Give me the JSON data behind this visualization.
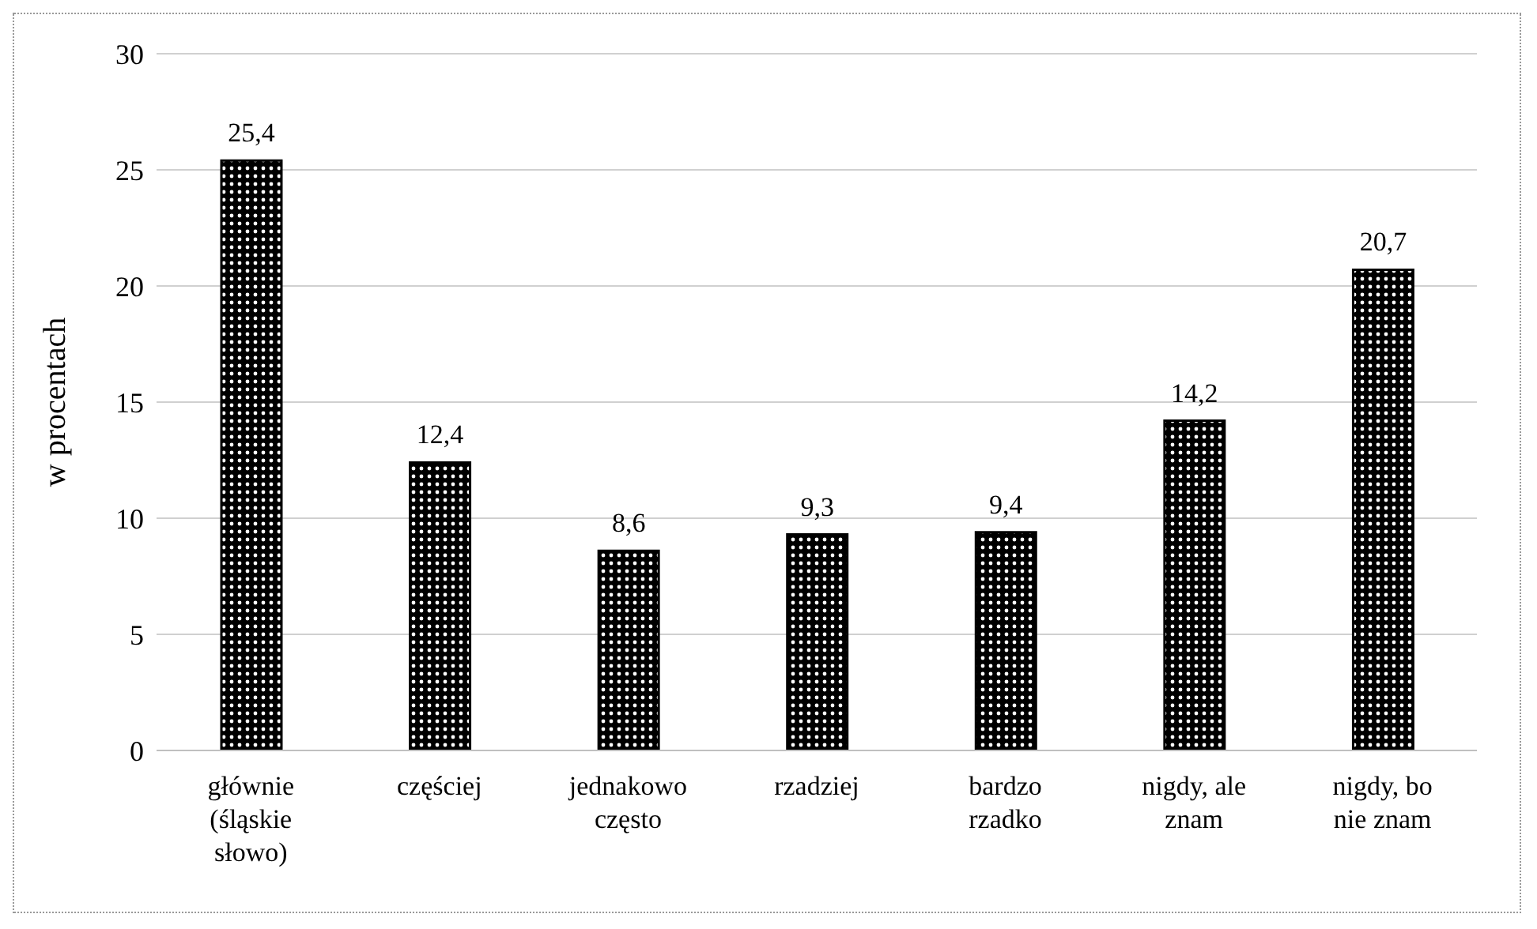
{
  "chart_data": {
    "type": "bar",
    "ylabel": "w procentach",
    "categories": [
      "głównie (śląskie słowo)",
      "częściej",
      "jednakowo często",
      "rzadziej",
      "bardzo rzadko",
      "nigdy, ale znam",
      "nigdy, bo nie znam"
    ],
    "values": [
      25.4,
      12.4,
      8.6,
      9.3,
      9.4,
      14.2,
      20.7
    ],
    "value_labels": [
      "25,4",
      "12,4",
      "8,6",
      "9,3",
      "9,4",
      "14,2",
      "20,7"
    ],
    "color": "#000000",
    "ylim": [
      0,
      30
    ],
    "yticks": [
      0,
      5,
      10,
      15,
      20,
      25,
      30
    ],
    "grid": "y",
    "legend": false
  }
}
